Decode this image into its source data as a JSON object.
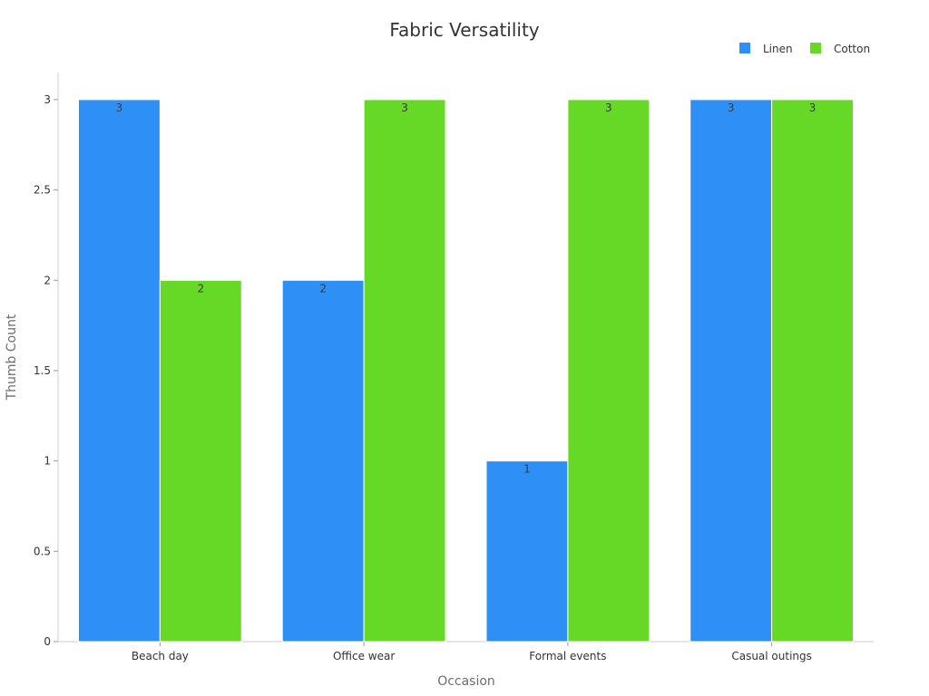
{
  "chart_data": {
    "type": "bar",
    "title": "Fabric Versatility",
    "xlabel": "Occasion",
    "ylabel": "Thumb Count",
    "categories": [
      "Beach day",
      "Office wear",
      "Formal events",
      "Casual outings"
    ],
    "series": [
      {
        "name": "Linen",
        "color": "#2e90f5",
        "values": [
          3,
          2,
          1,
          3
        ]
      },
      {
        "name": "Cotton",
        "color": "#66d926",
        "values": [
          2,
          3,
          3,
          3
        ]
      }
    ],
    "ylim": [
      0,
      3.15
    ],
    "yticks": [
      0,
      0.5,
      1,
      1.5,
      2,
      2.5,
      3
    ],
    "ytick_labels": [
      "0",
      "0.5",
      "1",
      "1.5",
      "2",
      "2.5",
      "3"
    ],
    "grid": false,
    "legend_position": "top-right",
    "data_labels": true
  }
}
